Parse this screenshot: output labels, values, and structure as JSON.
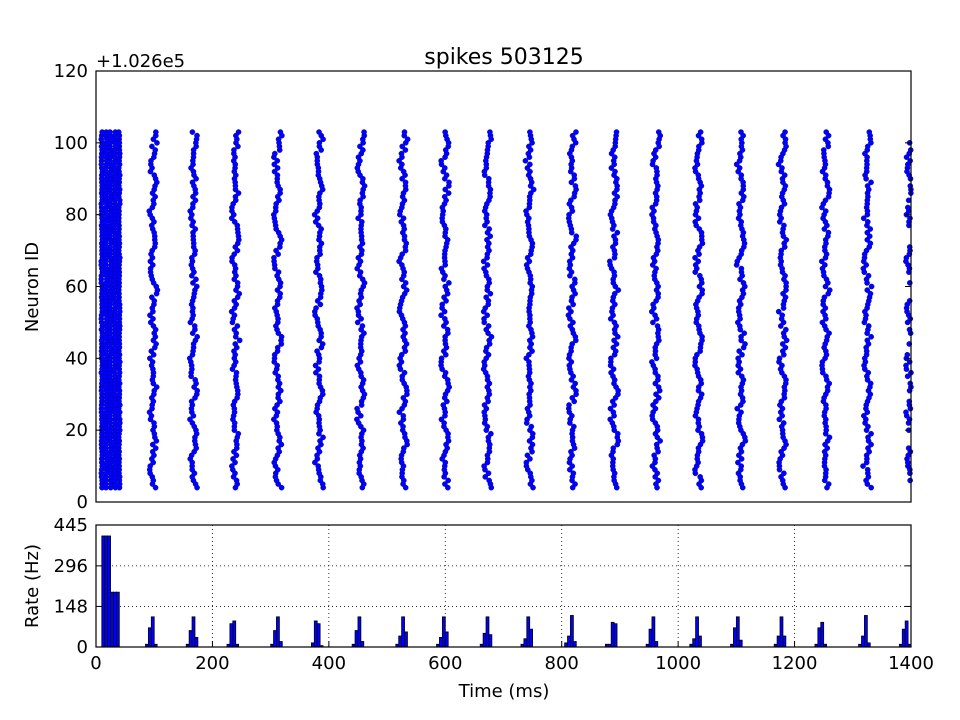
{
  "chart_data": [
    {
      "type": "scatter",
      "title": "spikes 503125",
      "ylabel": "Neuron ID",
      "xlabel": "",
      "offset_label": "+1.026e5",
      "xlim": [
        0,
        1400
      ],
      "ylim": [
        0,
        120
      ],
      "yticks": [
        0,
        20,
        40,
        60,
        80,
        100,
        120
      ],
      "marker_color": "#0000ff",
      "neuron_range": [
        4,
        103
      ],
      "initial_burst_window_ms": [
        10,
        40
      ],
      "volley_centers_ms": [
        98,
        167,
        240,
        312,
        383,
        455,
        528,
        600,
        672,
        745,
        818,
        890,
        962,
        1035,
        1108,
        1180,
        1253,
        1325,
        1398
      ],
      "volley_jitter_ms": 8
    },
    {
      "type": "bar",
      "title": "",
      "xlabel": "Time (ms)",
      "ylabel": "Rate (Hz)",
      "xlim": [
        0,
        1400
      ],
      "ylim": [
        0,
        445
      ],
      "xticks": [
        0,
        200,
        400,
        600,
        800,
        1000,
        1200,
        1400
      ],
      "yticks": [
        0,
        148,
        296,
        445
      ],
      "grid": true,
      "bar_color": "#0000ff",
      "bar_width_ms": 5,
      "bars": [
        {
          "x": 10,
          "y": 405
        },
        {
          "x": 15,
          "y": 405
        },
        {
          "x": 20,
          "y": 405
        },
        {
          "x": 25,
          "y": 200
        },
        {
          "x": 30,
          "y": 200
        },
        {
          "x": 35,
          "y": 200
        },
        {
          "x": 85,
          "y": 10
        },
        {
          "x": 90,
          "y": 70
        },
        {
          "x": 95,
          "y": 110
        },
        {
          "x": 100,
          "y": 10
        },
        {
          "x": 155,
          "y": 10
        },
        {
          "x": 160,
          "y": 60
        },
        {
          "x": 165,
          "y": 110
        },
        {
          "x": 170,
          "y": 35
        },
        {
          "x": 225,
          "y": 10
        },
        {
          "x": 230,
          "y": 85
        },
        {
          "x": 235,
          "y": 95
        },
        {
          "x": 240,
          "y": 10
        },
        {
          "x": 300,
          "y": 10
        },
        {
          "x": 305,
          "y": 60
        },
        {
          "x": 310,
          "y": 110
        },
        {
          "x": 315,
          "y": 20
        },
        {
          "x": 370,
          "y": 15
        },
        {
          "x": 375,
          "y": 95
        },
        {
          "x": 380,
          "y": 85
        },
        {
          "x": 385,
          "y": 5
        },
        {
          "x": 440,
          "y": 10
        },
        {
          "x": 445,
          "y": 60
        },
        {
          "x": 450,
          "y": 110
        },
        {
          "x": 455,
          "y": 20
        },
        {
          "x": 515,
          "y": 10
        },
        {
          "x": 520,
          "y": 40
        },
        {
          "x": 525,
          "y": 110
        },
        {
          "x": 530,
          "y": 55
        },
        {
          "x": 585,
          "y": 10
        },
        {
          "x": 590,
          "y": 35
        },
        {
          "x": 595,
          "y": 110
        },
        {
          "x": 600,
          "y": 55
        },
        {
          "x": 660,
          "y": 10
        },
        {
          "x": 665,
          "y": 50
        },
        {
          "x": 670,
          "y": 110
        },
        {
          "x": 675,
          "y": 45
        },
        {
          "x": 730,
          "y": 10
        },
        {
          "x": 735,
          "y": 30
        },
        {
          "x": 740,
          "y": 110
        },
        {
          "x": 745,
          "y": 65
        },
        {
          "x": 805,
          "y": 15
        },
        {
          "x": 810,
          "y": 40
        },
        {
          "x": 815,
          "y": 115
        },
        {
          "x": 820,
          "y": 20
        },
        {
          "x": 875,
          "y": 10
        },
        {
          "x": 880,
          "y": 10
        },
        {
          "x": 885,
          "y": 90
        },
        {
          "x": 890,
          "y": 85
        },
        {
          "x": 945,
          "y": 10
        },
        {
          "x": 950,
          "y": 65
        },
        {
          "x": 955,
          "y": 110
        },
        {
          "x": 960,
          "y": 20
        },
        {
          "x": 1020,
          "y": 10
        },
        {
          "x": 1025,
          "y": 30
        },
        {
          "x": 1030,
          "y": 110
        },
        {
          "x": 1035,
          "y": 40
        },
        {
          "x": 1090,
          "y": 10
        },
        {
          "x": 1095,
          "y": 70
        },
        {
          "x": 1100,
          "y": 110
        },
        {
          "x": 1105,
          "y": 25
        },
        {
          "x": 1165,
          "y": 10
        },
        {
          "x": 1170,
          "y": 40
        },
        {
          "x": 1175,
          "y": 110
        },
        {
          "x": 1180,
          "y": 40
        },
        {
          "x": 1235,
          "y": 10
        },
        {
          "x": 1240,
          "y": 70
        },
        {
          "x": 1245,
          "y": 90
        },
        {
          "x": 1250,
          "y": 10
        },
        {
          "x": 1310,
          "y": 10
        },
        {
          "x": 1315,
          "y": 40
        },
        {
          "x": 1320,
          "y": 115
        },
        {
          "x": 1325,
          "y": 15
        },
        {
          "x": 1380,
          "y": 10
        },
        {
          "x": 1385,
          "y": 65
        },
        {
          "x": 1390,
          "y": 95
        },
        {
          "x": 1395,
          "y": 10
        }
      ]
    }
  ]
}
